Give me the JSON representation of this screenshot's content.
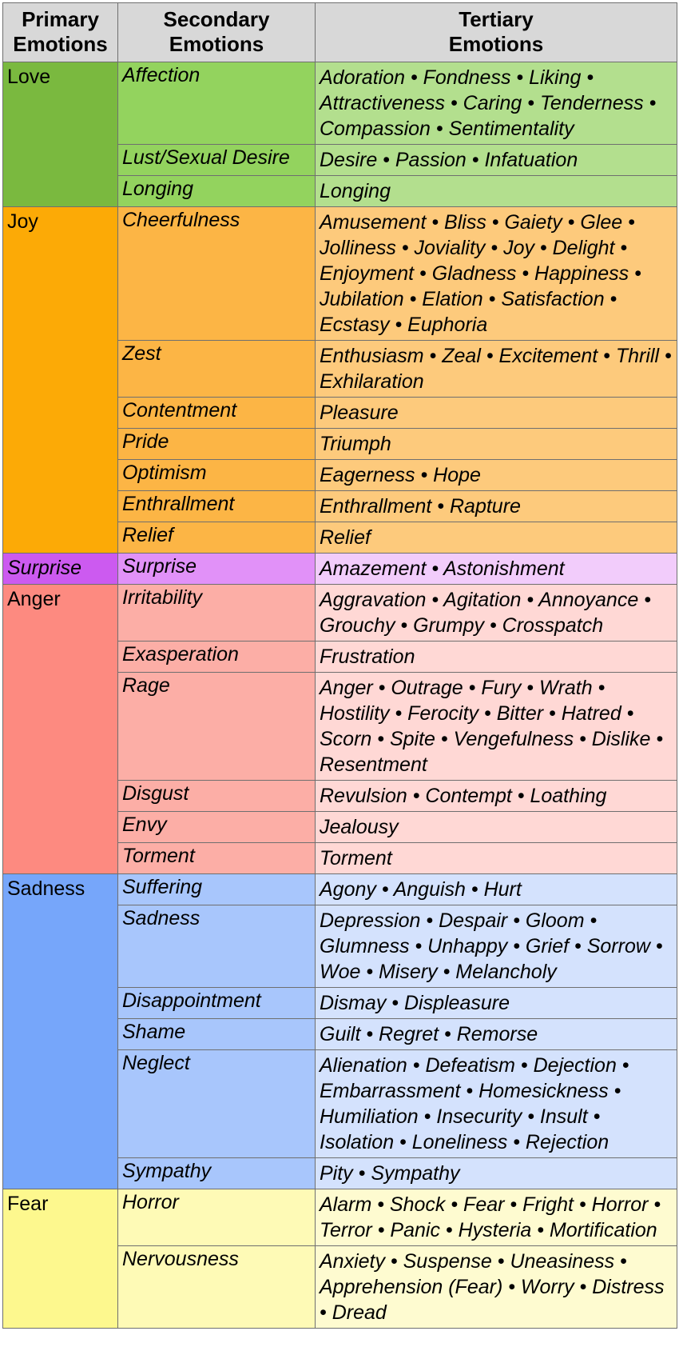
{
  "header": {
    "primary": [
      "Primary",
      "Emotions"
    ],
    "secondary": [
      "Secondary",
      "Emotions"
    ],
    "tertiary": [
      "Tertiary",
      "Emotions"
    ]
  },
  "colors": {
    "header_bg": "#d8d8d8",
    "grid": "#6f6f6f"
  },
  "groups": [
    {
      "primary": "Love",
      "primary_italic": false,
      "colors": {
        "primary": "#7ab93f",
        "secondary": "#93d35e",
        "tertiary": "#b3df8e"
      },
      "rows": [
        {
          "secondary": "Affection",
          "tertiary": "Adoration • Fondness • Liking • Attractiveness • Caring • Tenderness • Compassion • Sentimentality",
          "h": 98
        },
        {
          "secondary": "Lust/Sexual Desire",
          "tertiary": "Desire • Passion • Infatuation",
          "h": 38
        },
        {
          "secondary": "Longing",
          "tertiary": "Longing",
          "h": 36
        }
      ]
    },
    {
      "primary": "Joy",
      "primary_italic": false,
      "colors": {
        "primary": "#fcaa06",
        "secondary": "#fcb545",
        "tertiary": "#fdca7c"
      },
      "rows": [
        {
          "secondary": "Cheerfulness",
          "tertiary": "Amusement • Bliss • Gaiety • Glee • Jolliness • Joviality • Joy • Delight • Enjoyment • Gladness • Happiness • Jubilation • Elation • Satisfaction • Ecstasy • Euphoria",
          "h": 158
        },
        {
          "secondary": "Zest",
          "tertiary": "Enthusiasm • Zeal • Excitement • Thrill • Exhilaration",
          "h": 68
        },
        {
          "secondary": "Contentment",
          "tertiary": "Pleasure",
          "h": 37
        },
        {
          "secondary": "Pride",
          "tertiary": "Triumph",
          "h": 37
        },
        {
          "secondary": "Optimism",
          "tertiary": "Eagerness • Hope",
          "h": 37
        },
        {
          "secondary": "Enthrallment",
          "tertiary": "Enthrallment • Rapture",
          "h": 38
        },
        {
          "secondary": "Relief",
          "tertiary": "Relief",
          "h": 37
        }
      ]
    },
    {
      "primary": "Surprise",
      "primary_italic": true,
      "colors": {
        "primary": "#cc5af0",
        "secondary": "#e191f8",
        "tertiary": "#f2ccfb"
      },
      "rows": [
        {
          "secondary": "Surprise",
          "tertiary": "Amazement • Astonishment",
          "h": 37
        }
      ]
    },
    {
      "primary": "Anger",
      "primary_italic": false,
      "colors": {
        "primary": "#fd8a80",
        "secondary": "#fcaea6",
        "tertiary": "#ffd8d5"
      },
      "rows": [
        {
          "secondary": "Irritability",
          "tertiary": "Aggravation • Agitation • Annoyance • Grouchy • Grumpy • Crosspatch",
          "h": 68
        },
        {
          "secondary": "Exasperation",
          "tertiary": "Frustration",
          "h": 36
        },
        {
          "secondary": "Rage",
          "tertiary": "Anger • Outrage • Fury • Wrath • Hostility • Ferocity • Bitter • Hatred • Scorn • Spite • Vengefulness • Dislike • Resentment",
          "h": 126
        },
        {
          "secondary": "Disgust",
          "tertiary": "Revulsion • Contempt • Loathing",
          "h": 38
        },
        {
          "secondary": "Envy",
          "tertiary": "Jealousy",
          "h": 36
        },
        {
          "secondary": "Torment",
          "tertiary": "Torment",
          "h": 36
        }
      ]
    },
    {
      "primary": "Sadness",
      "primary_italic": false,
      "colors": {
        "primary": "#76a6fa",
        "secondary": "#a8c6fc",
        "tertiary": "#d4e2fd"
      },
      "rows": [
        {
          "secondary": "Suffering",
          "tertiary": "Agony • Anguish • Hurt",
          "h": 38
        },
        {
          "secondary": "Sadness",
          "tertiary": "Depression • Despair • Gloom • Glumness • Unhappy • Grief • Sorrow • Woe • Misery • Melancholy",
          "h": 98
        },
        {
          "secondary": "Disappointment",
          "tertiary": "Dismay • Displeasure",
          "h": 38
        },
        {
          "secondary": "Shame",
          "tertiary": "Guilt • Regret • Remorse",
          "h": 38
        },
        {
          "secondary": "Neglect",
          "tertiary": "Alienation • Defeatism • Dejection • Embarrassment • Homesickness • Humiliation • Insecurity • Insult • Isolation • Loneliness • Rejection",
          "h": 128
        },
        {
          "secondary": "Sympathy",
          "tertiary": "Pity • Sympathy",
          "h": 38
        }
      ]
    },
    {
      "primary": "Fear",
      "primary_italic": false,
      "colors": {
        "primary": "#fdf88e",
        "secondary": "#fefab6",
        "tertiary": "#fefbd0"
      },
      "rows": [
        {
          "secondary": "Horror",
          "tertiary": "Alarm • Shock • Fear • Fright • Horror • Terror • Panic • Hysteria • Mortification",
          "h": 68
        },
        {
          "secondary": "Nervousness",
          "tertiary": "Anxiety • Suspense • Uneasiness • Apprehension (Fear) • Worry • Distress • Dread",
          "h": 98
        }
      ]
    }
  ]
}
